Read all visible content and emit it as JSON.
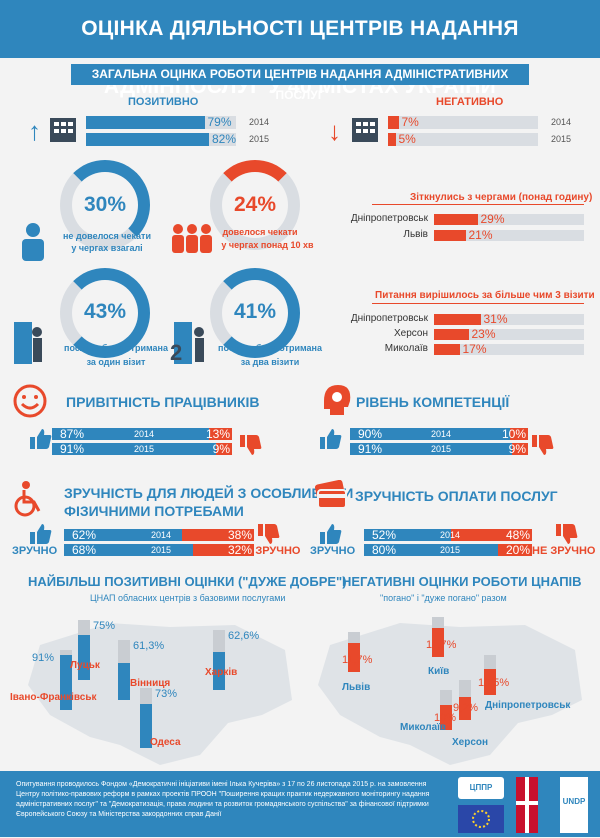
{
  "header": {
    "title": "ОЦІНКА ДІЯЛЬНОСТІ ЦЕНТРІВ НАДАННЯ АДМІНПОСЛУГ У 40 МІСТАХ УКРАЇНИ"
  },
  "section1": {
    "title": "ЗАГАЛЬНА ОЦІНКА РОБОТИ ЦЕНТРІВ НАДАННЯ АДМІНІСТРАТИВНИХ ПОСЛУГ",
    "positive_label": "ПОЗИТИВНО",
    "negative_label": "НЕГАТИВНО"
  },
  "circles": {
    "c1": {
      "value": "30%",
      "text1": "не довелося чекати",
      "text2": "у чергах взагалі"
    },
    "c2": {
      "value": "24%",
      "text1": "довелося чекати",
      "text2": "у чергах понад 10 хв"
    },
    "c3": {
      "value": "43%",
      "text1": "послуга була отримана",
      "text2": "за один візит"
    },
    "c4": {
      "value": "41%",
      "text1": "послуга була отримана",
      "text2": "за два візити"
    }
  },
  "queues": {
    "title": "Зіткнулись з чергами (понад годину)"
  },
  "visits": {
    "title": "Питання вирішилось за більше чим 3 візити"
  },
  "friendliness": {
    "title": "ПРИВІТНІСТЬ ПРАЦІВНИКІВ"
  },
  "competence": {
    "title": "РІВЕНЬ КОМПЕТЕНЦІЇ"
  },
  "accessibility": {
    "title1": "ЗРУЧНІСТЬ ДЛЯ ЛЮДЕЙ З ОСОБЛИВИМИ",
    "title2": "ФІЗИЧНИМИ ПОТРЕБАМИ",
    "yes": "ЗРУЧНО",
    "no": "НЕ ЗРУЧНО"
  },
  "payment": {
    "title": "ЗРУЧНІСТЬ ОПЛАТИ ПОСЛУГ",
    "yes": "ЗРУЧНО",
    "no": "НЕ ЗРУЧНО"
  },
  "map_pos": {
    "title": "НАЙБІЛЬШ ПОЗИТИВНІ ОЦІНКИ (\"ДУЖЕ ДОБРЕ\")",
    "subtitle": "ЦНАП обласних центрів з базовими послугами"
  },
  "map_neg": {
    "title": "НЕГАТИВНІ ОЦІНКИ РОБОТИ ЦНАПІВ",
    "subtitle": "\"погано\" і \"дуже погано\" разом"
  },
  "footer": {
    "text": "Опитування проводилось Фондом «Демократичні ініціативи імені Ілька Кучеріва» з 17 по 26 листопада 2015 р. на замовлення Центру політико-правових реформ в рамках проектів ПРООН \"Поширення кращих практик недержавного моніторингу надання адміністративних послуг\" та \"Демократизація, права людини та розвиток громадянського суспільства\" за фінансової підтримки Європейського Союзу та Міністерства закордонних справ Данії",
    "logo1": "ЦППР",
    "logo2": "UNDP"
  },
  "colors": {
    "blue": "#2f86bd",
    "red": "#e8492b",
    "grey": "#d9dde2"
  },
  "chart_data": [
    {
      "type": "bar",
      "title": "ПОЗИТИВНО",
      "categories": [
        "2014",
        "2015"
      ],
      "values": [
        79,
        82
      ],
      "labels": [
        "79%",
        "82%"
      ],
      "ylim": [
        0,
        100
      ]
    },
    {
      "type": "bar",
      "title": "НЕГАТИВНО",
      "categories": [
        "2014",
        "2015"
      ],
      "values": [
        7,
        5
      ],
      "labels": [
        "7%",
        "5%"
      ],
      "ylim": [
        0,
        100
      ]
    },
    {
      "type": "bar",
      "title": "Зіткнулись з чергами (понад годину)",
      "categories": [
        "Дніпропетровськ",
        "Львів"
      ],
      "values": [
        29,
        21
      ],
      "labels": [
        "29%",
        "21%"
      ],
      "ylim": [
        0,
        100
      ]
    },
    {
      "type": "bar",
      "title": "Питання вирішилось за більше чим 3 візити",
      "categories": [
        "Дніпропетровськ",
        "Херсон",
        "Миколаїв"
      ],
      "values": [
        31,
        23,
        17
      ],
      "labels": [
        "31%",
        "23%",
        "17%"
      ],
      "ylim": [
        0,
        100
      ]
    },
    {
      "type": "bar",
      "title": "ПРИВІТНІСТЬ ПРАЦІВНИКІВ",
      "categories": [
        "2014",
        "2015"
      ],
      "series": [
        {
          "values": [
            87,
            91
          ],
          "labels": [
            "87%",
            "91%"
          ]
        },
        {
          "values": [
            13,
            9
          ],
          "labels": [
            "13%",
            "9%"
          ]
        }
      ]
    },
    {
      "type": "bar",
      "title": "РІВЕНЬ КОМПЕТЕНЦІЇ",
      "categories": [
        "2014",
        "2015"
      ],
      "series": [
        {
          "values": [
            90,
            91
          ],
          "labels": [
            "90%",
            "91%"
          ]
        },
        {
          "values": [
            10,
            9
          ],
          "labels": [
            "10%",
            "9%"
          ]
        }
      ]
    },
    {
      "type": "bar",
      "title": "ЗРУЧНІСТЬ ДЛЯ ЛЮДЕЙ З ОСОБЛИВИМИ ФІЗИЧНИМИ ПОТРЕБАМИ",
      "categories": [
        "2014",
        "2015"
      ],
      "series": [
        {
          "name": "ЗРУЧНО",
          "values": [
            62,
            68
          ],
          "labels": [
            "62%",
            "68%"
          ]
        },
        {
          "name": "НЕ ЗРУЧНО",
          "values": [
            38,
            32
          ],
          "labels": [
            "38%",
            "32%"
          ]
        }
      ]
    },
    {
      "type": "bar",
      "title": "ЗРУЧНІСТЬ ОПЛАТИ ПОСЛУГ",
      "categories": [
        "2014",
        "2015"
      ],
      "series": [
        {
          "name": "ЗРУЧНО",
          "values": [
            52,
            80
          ],
          "labels": [
            "52%",
            "80%"
          ]
        },
        {
          "name": "НЕ ЗРУЧНО",
          "values": [
            48,
            20
          ],
          "labels": [
            "48%",
            "20%"
          ]
        }
      ]
    },
    {
      "type": "bar",
      "title": "НАЙБІЛЬШ ПОЗИТИВНІ ОЦІНКИ (\"ДУЖЕ ДОБРЕ\")",
      "categories": [
        "Івано-Франківськ",
        "Луцьк",
        "Вінниця",
        "Харків",
        "Одеса"
      ],
      "values": [
        91,
        75,
        61.3,
        62.6,
        73
      ],
      "labels": [
        "91%",
        "75%",
        "61,3%",
        "62,6%",
        "73%"
      ]
    },
    {
      "type": "bar",
      "title": "НЕГАТИВНІ ОЦІНКИ РОБОТИ ЦНАПІВ",
      "categories": [
        "Львів",
        "Київ",
        "Миколаїв",
        "Херсон",
        "Дніпропетровськ"
      ],
      "values": [
        11.7,
        11.7,
        10,
        9.2,
        10.5
      ],
      "labels": [
        "11,7%",
        "11,7%",
        "10%",
        "9,2%",
        "10,5%"
      ]
    }
  ]
}
